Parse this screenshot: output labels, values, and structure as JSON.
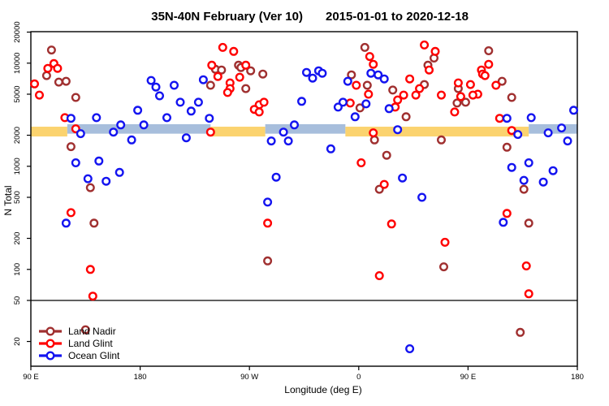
{
  "title": {
    "range_label": "35N-40N February (Ver 10)",
    "date_range": "2015-01-01 to 2020-12-18"
  },
  "colors": {
    "land_nadir": "#A03030",
    "land_glint": "#FF0000",
    "ocean_glint": "#1414F0",
    "band_orange": "#FBD36F",
    "band_blue": "#A7BEDC",
    "axis": "#000000",
    "background": "#ffffff"
  },
  "legend": {
    "entries": [
      {
        "label": "Land Nadir",
        "color_key": "land_nadir"
      },
      {
        "label": "Land Glint",
        "color_key": "land_glint"
      },
      {
        "label": "Ocean Glint",
        "color_key": "ocean_glint"
      }
    ]
  },
  "chart_data": {
    "type": "scatter",
    "title": "35N-40N February (Ver 10)   2015-01-01 to 2020-12-18",
    "xlabel": "Longitude (deg E)",
    "ylabel": "N Total",
    "y_scale": "log",
    "y_ticks": [
      20,
      50,
      100,
      200,
      500,
      1000,
      2000,
      5000,
      10000,
      20000
    ],
    "y_range": [
      13,
      22000
    ],
    "x_range_plotted": [
      90,
      540
    ],
    "x_ticks": [
      {
        "lon": 90,
        "label": "90 E"
      },
      {
        "lon": 180,
        "label": "180"
      },
      {
        "lon": 270,
        "label": "90 W"
      },
      {
        "lon": 360,
        "label": "0"
      },
      {
        "lon": 450,
        "label": "90 E"
      },
      {
        "lon": 540,
        "label": "180"
      }
    ],
    "reference_line_n": 50,
    "reference_band": {
      "n_low": 1950,
      "n_high": 2550,
      "orange_n": [
        1945,
        2420
      ],
      "blue_n": [
        2070,
        2560
      ],
      "segments": [
        {
          "color": "orange",
          "lon": [
            90,
            120
          ]
        },
        {
          "color": "blue",
          "lon": [
            120,
            238
          ]
        },
        {
          "color": "orange",
          "lon": [
            238,
            283
          ]
        },
        {
          "color": "blue",
          "lon": [
            283,
            349
          ]
        },
        {
          "color": "orange",
          "lon": [
            349,
            500
          ]
        },
        {
          "color": "blue",
          "lon": [
            500,
            540
          ]
        }
      ]
    },
    "series": [
      {
        "name": "Land Nadir",
        "color_key": "land_nadir",
        "points": [
          [
            107,
            13400
          ],
          [
            103,
            7570
          ],
          [
            113,
            6550
          ],
          [
            119,
            6670
          ],
          [
            127,
            4650
          ],
          [
            123,
            1550
          ],
          [
            139,
            620
          ],
          [
            142,
            281
          ],
          [
            135,
            26
          ],
          [
            238,
            6100
          ],
          [
            242,
            8730
          ],
          [
            247,
            8580
          ],
          [
            261,
            9550
          ],
          [
            263,
            9060
          ],
          [
            271,
            8430
          ],
          [
            281,
            7840
          ],
          [
            267,
            5670
          ],
          [
            285,
            121
          ],
          [
            354,
            7700
          ],
          [
            365,
            14200
          ],
          [
            367,
            6100
          ],
          [
            388,
            5480
          ],
          [
            361,
            3680
          ],
          [
            373,
            1800
          ],
          [
            383,
            1280
          ],
          [
            377,
            598
          ],
          [
            422,
            11200
          ],
          [
            417,
            9550
          ],
          [
            414,
            6200
          ],
          [
            399,
            3020
          ],
          [
            428,
            1800
          ],
          [
            441,
            4100
          ],
          [
            448,
            4180
          ],
          [
            442,
            5670
          ],
          [
            430,
            106
          ],
          [
            493,
            24.5
          ],
          [
            467,
            13200
          ],
          [
            478,
            6670
          ],
          [
            486,
            4650
          ],
          [
            482,
            1530
          ],
          [
            496,
            598
          ],
          [
            500,
            281
          ]
        ]
      },
      {
        "name": "Land Glint",
        "color_key": "land_glint",
        "points": [
          [
            109,
            9900
          ],
          [
            104,
            8900
          ],
          [
            112,
            8900
          ],
          [
            93,
            6300
          ],
          [
            97,
            4900
          ],
          [
            118,
            2960
          ],
          [
            127,
            2310
          ],
          [
            123,
            355
          ],
          [
            139,
            100
          ],
          [
            141,
            55
          ],
          [
            248,
            14200
          ],
          [
            257,
            13000
          ],
          [
            239,
            9550
          ],
          [
            244,
            7420
          ],
          [
            267,
            9550
          ],
          [
            262,
            7300
          ],
          [
            254,
            6430
          ],
          [
            254,
            5670
          ],
          [
            252,
            5190
          ],
          [
            278,
            3950
          ],
          [
            282,
            4180
          ],
          [
            274,
            3560
          ],
          [
            278,
            3360
          ],
          [
            238,
            2145
          ],
          [
            285,
            281
          ],
          [
            369,
            11600
          ],
          [
            372,
            9750
          ],
          [
            358,
            6100
          ],
          [
            368,
            5000
          ],
          [
            353,
            4100
          ],
          [
            372,
            2110
          ],
          [
            362,
            1080
          ],
          [
            381,
            667
          ],
          [
            387,
            276
          ],
          [
            377,
            87
          ],
          [
            414,
            15000
          ],
          [
            423,
            13000
          ],
          [
            418,
            8580
          ],
          [
            402,
            7030
          ],
          [
            410,
            5670
          ],
          [
            397,
            4900
          ],
          [
            407,
            4900
          ],
          [
            392,
            4400
          ],
          [
            390,
            3750
          ],
          [
            428,
            4900
          ],
          [
            442,
            6430
          ],
          [
            444,
            4740
          ],
          [
            439,
            3360
          ],
          [
            431,
            183
          ],
          [
            452,
            6200
          ],
          [
            458,
            5000
          ],
          [
            454,
            4900
          ],
          [
            461,
            8580
          ],
          [
            462,
            7840
          ],
          [
            464,
            7570
          ],
          [
            467,
            9750
          ],
          [
            473,
            6100
          ],
          [
            476,
            2920
          ],
          [
            486,
            2225
          ],
          [
            482,
            349
          ],
          [
            498,
            108
          ],
          [
            500,
            58
          ]
        ]
      },
      {
        "name": "Ocean Glint",
        "color_key": "ocean_glint",
        "points": [
          [
            123,
            2920
          ],
          [
            144,
            2960
          ],
          [
            131,
            2070
          ],
          [
            158,
            2145
          ],
          [
            164,
            2520
          ],
          [
            119,
            281
          ],
          [
            127,
            1080
          ],
          [
            146,
            1125
          ],
          [
            137,
            757
          ],
          [
            152,
            716
          ],
          [
            163,
            873
          ],
          [
            189,
            6790
          ],
          [
            193,
            5870
          ],
          [
            208,
            6100
          ],
          [
            196,
            4820
          ],
          [
            213,
            4180
          ],
          [
            228,
            4180
          ],
          [
            222,
            3430
          ],
          [
            178,
            3490
          ],
          [
            202,
            2960
          ],
          [
            183,
            2520
          ],
          [
            173,
            1800
          ],
          [
            218,
            1890
          ],
          [
            232,
            6900
          ],
          [
            237,
            2920
          ],
          [
            298,
            2145
          ],
          [
            307,
            2520
          ],
          [
            288,
            1760
          ],
          [
            302,
            1760
          ],
          [
            292,
            784
          ],
          [
            285,
            449
          ],
          [
            313,
            4260
          ],
          [
            317,
            8130
          ],
          [
            322,
            7160
          ],
          [
            327,
            8430
          ],
          [
            330,
            7980
          ],
          [
            351,
            6670
          ],
          [
            370,
            7980
          ],
          [
            376,
            7700
          ],
          [
            381,
            7030
          ],
          [
            347,
            4180
          ],
          [
            343,
            3750
          ],
          [
            366,
            4030
          ],
          [
            385,
            3620
          ],
          [
            357,
            3020
          ],
          [
            337,
            1475
          ],
          [
            392,
            2265
          ],
          [
            396,
            770
          ],
          [
            412,
            500
          ],
          [
            402,
            17
          ],
          [
            482,
            2920
          ],
          [
            502,
            2960
          ],
          [
            537,
            3490
          ],
          [
            491,
            2035
          ],
          [
            516,
            2110
          ],
          [
            527,
            2350
          ],
          [
            532,
            1760
          ],
          [
            486,
            975
          ],
          [
            500,
            1080
          ],
          [
            520,
            906
          ],
          [
            496,
            730
          ],
          [
            512,
            703
          ],
          [
            479,
            286
          ]
        ]
      }
    ]
  }
}
